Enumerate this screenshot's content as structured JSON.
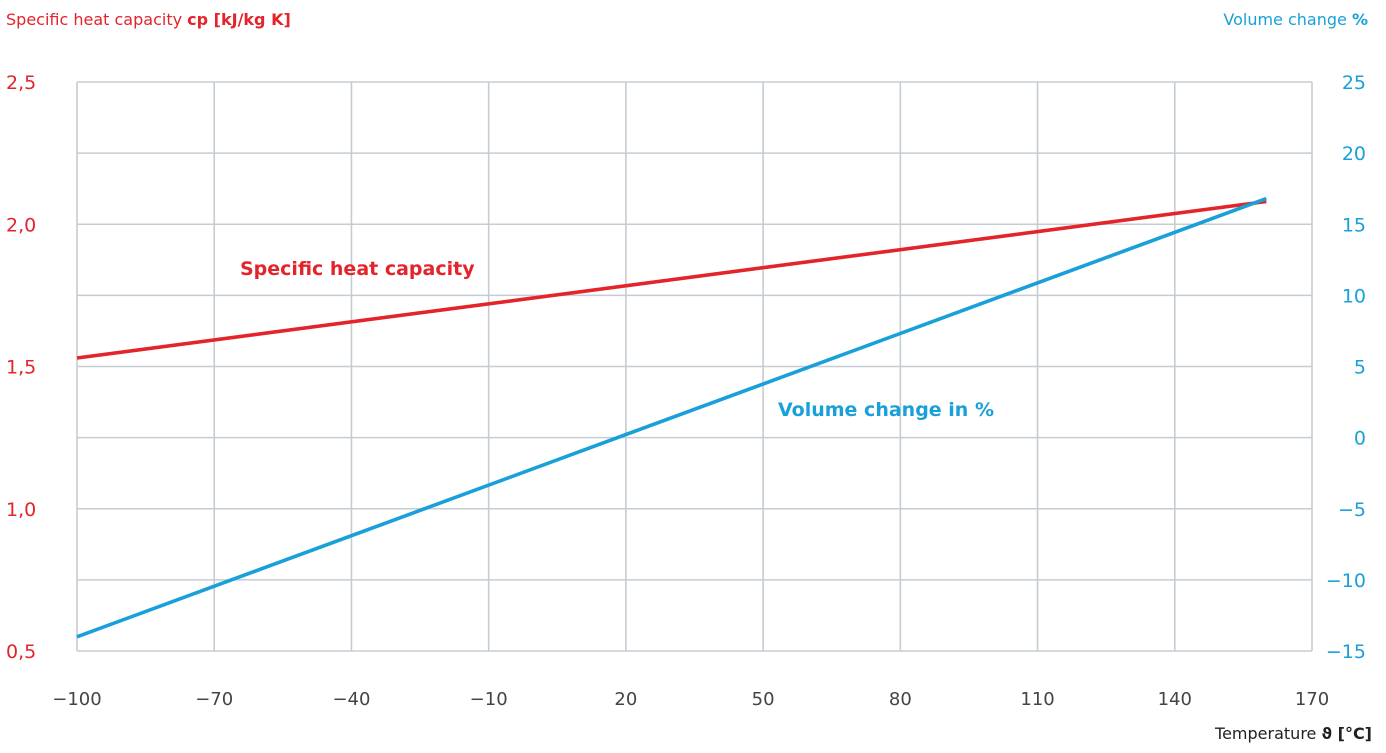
{
  "header": {
    "left_label": "Specific heat capacity",
    "left_unit": "cp [kJ/kg K]",
    "right_label": "Volume change",
    "right_unit": "%"
  },
  "x_title": {
    "label": "Temperature",
    "unit": "ϑ [°C]"
  },
  "chart_data": {
    "type": "line",
    "title": "",
    "x_ticks": [
      "−100",
      "−70",
      "−40",
      "−10",
      "20",
      "50",
      "80",
      "110",
      "140",
      "170"
    ],
    "y_left_ticks": [
      "0,5",
      "1,0",
      "1,5",
      "2,0",
      "2,5"
    ],
    "y_right_ticks": [
      "−15",
      "−10",
      "−5",
      "0",
      "5",
      "10",
      "15",
      "20",
      "25"
    ],
    "xlim": [
      -100,
      170
    ],
    "ylim_left": [
      0.5,
      2.5
    ],
    "ylim_right": [
      -15,
      25
    ],
    "grid": true,
    "series": [
      {
        "name": "Specific heat capacity",
        "axis": "left",
        "color": "#e3242b",
        "x": [
          -100,
          160
        ],
        "y": [
          1.53,
          2.08
        ]
      },
      {
        "name": "Volume change in %",
        "axis": "right",
        "color": "#1aa0d8",
        "x": [
          -100,
          160
        ],
        "y": [
          -14.0,
          16.8
        ]
      }
    ],
    "colors": {
      "left_axis": "#e3242b",
      "right_axis": "#1aa0d8",
      "grid": "#c5cdd3",
      "x_axis_text": "#444444"
    }
  }
}
